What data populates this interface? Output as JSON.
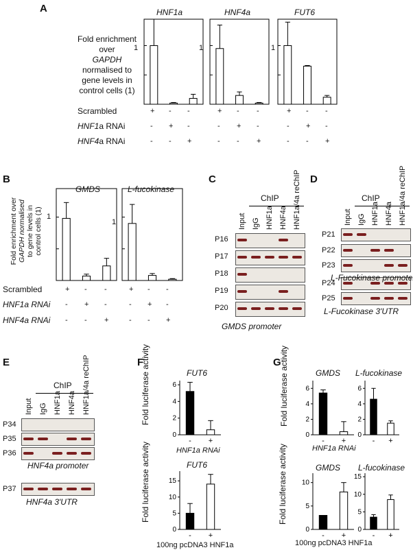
{
  "panels": {
    "A": "A",
    "B": "B",
    "C": "C",
    "D": "D",
    "E": "E",
    "F": "F",
    "G": "G"
  },
  "A": {
    "ylabel_lines": [
      "Fold enrichment",
      "over",
      "GAPDH",
      "normalised to",
      "gene levels in",
      "control cells (1)"
    ],
    "ytick": "1",
    "row_labels": [
      "Scrambled",
      "HNF1a RNAi",
      "HNF4a RNAi"
    ],
    "row_label_italic_part": [
      "",
      "HNF1",
      "HNF4"
    ],
    "row_label_rest": [
      "Scrambled",
      "a RNAi",
      "a RNAi"
    ],
    "signs": [
      [
        "+",
        "-",
        "-"
      ],
      [
        "-",
        "+",
        "-"
      ],
      [
        "-",
        "-",
        "+"
      ]
    ]
  },
  "B": {
    "ylabel_lines": [
      "Fold enrichment over",
      "GAPDH normalised",
      "to gene levels in",
      "control cells (1)"
    ],
    "ytick": "1",
    "row_labels": [
      "Scrambled",
      "HNF1a RNAi",
      "HNF4a RNAi"
    ],
    "signs": [
      [
        "+",
        "-",
        "-"
      ],
      [
        "-",
        "+",
        "-"
      ],
      [
        "-",
        "-",
        "+"
      ]
    ]
  },
  "chart_data": [
    {
      "type": "bar",
      "title": "HNF1a",
      "categories": [
        "Scrambled",
        "HNF1a RNAi",
        "HNF4a RNAi"
      ],
      "values": [
        1.0,
        0.02,
        0.1
      ],
      "errors": [
        0.45,
        0.01,
        0.07
      ],
      "ylim": [
        0,
        1.45
      ],
      "ytick": 1
    },
    {
      "type": "bar",
      "title": "HNF4a",
      "categories": [
        "Scrambled",
        "HNF1a RNAi",
        "HNF4a RNAi"
      ],
      "values": [
        0.95,
        0.15,
        0.02
      ],
      "errors": [
        0.4,
        0.06,
        0.01
      ],
      "ylim": [
        0,
        1.45
      ],
      "ytick": 1
    },
    {
      "type": "bar",
      "title": "FUT6",
      "categories": [
        "Scrambled",
        "HNF1a RNAi",
        "HNF4a RNAi"
      ],
      "values": [
        1.0,
        0.65,
        0.12
      ],
      "errors": [
        0.4,
        0.01,
        0.03
      ],
      "ylim": [
        0,
        1.45
      ],
      "ytick": 1
    },
    {
      "type": "bar",
      "title": "GMDS",
      "categories": [
        "Scrambled",
        "HNF1a RNAi",
        "HNF4a RNAi"
      ],
      "values": [
        0.98,
        0.07,
        0.23
      ],
      "errors": [
        0.25,
        0.03,
        0.12
      ],
      "ylim": [
        0,
        1.45
      ],
      "ytick": 1
    },
    {
      "type": "bar",
      "title": "L-fucokinase",
      "categories": [
        "Scrambled",
        "HNF1a RNAi",
        "HNF4a RNAi"
      ],
      "values": [
        0.9,
        0.08,
        0.02
      ],
      "errors": [
        0.3,
        0.03,
        0.01
      ],
      "ylim": [
        0,
        1.45
      ],
      "ytick": 1
    },
    {
      "type": "bar",
      "title": "FUT6",
      "ylabel": "Fold luciferase activity",
      "categories": [
        "-",
        "+"
      ],
      "xlabel": "HNF1a RNAi",
      "values": [
        5.2,
        0.6
      ],
      "errors": [
        1.1,
        1.1
      ],
      "ylim": [
        0,
        6.5
      ],
      "yticks": [
        0,
        2,
        4,
        6
      ],
      "fills": [
        "#000000",
        "#ffffff"
      ]
    },
    {
      "type": "bar",
      "title": "FUT6",
      "ylabel": "Fold luciferase activity",
      "categories": [
        "-",
        "+"
      ],
      "xlabel": "100ng pcDNA3 HNF1a",
      "values": [
        5,
        14
      ],
      "errors": [
        3,
        3
      ],
      "ylim": [
        0,
        18
      ],
      "yticks": [
        0,
        5,
        10,
        15
      ],
      "fills": [
        "#000000",
        "#ffffff"
      ]
    },
    {
      "type": "bar",
      "title": "GMDS",
      "ylabel": "Fold luciferase activity",
      "categories": [
        "-",
        "+"
      ],
      "xlabel": "HNF1a RNAi",
      "values": [
        5.4,
        0.4
      ],
      "errors": [
        0.4,
        1.3
      ],
      "ylim": [
        0,
        7
      ],
      "yticks": [
        0,
        2,
        4,
        6
      ],
      "fills": [
        "#000000",
        "#ffffff"
      ]
    },
    {
      "type": "bar",
      "title": "L-fucokinase",
      "categories": [
        "-",
        "+"
      ],
      "values": [
        4.6,
        1.5
      ],
      "errors": [
        1.4,
        0.3
      ],
      "ylim": [
        0,
        7
      ],
      "yticks": [
        0,
        2,
        4,
        6
      ],
      "fills": [
        "#000000",
        "#ffffff"
      ]
    },
    {
      "type": "bar",
      "title": "GMDS",
      "ylabel": "Fold luciferase activity",
      "categories": [
        "-",
        "+"
      ],
      "xlabel": "100ng pcDNA3 HNF1a",
      "values": [
        3,
        8
      ],
      "errors": [
        0,
        2
      ],
      "ylim": [
        0,
        12
      ],
      "yticks": [
        0,
        5,
        10
      ],
      "fills": [
        "#000000",
        "#ffffff"
      ]
    },
    {
      "type": "bar",
      "title": "L-fucokinase",
      "categories": [
        "-",
        "+"
      ],
      "values": [
        3.5,
        8.5
      ],
      "errors": [
        0.7,
        1.3
      ],
      "ylim": [
        0,
        16
      ],
      "yticks": [
        0,
        5,
        10,
        15
      ],
      "fills": [
        "#000000",
        "#ffffff"
      ]
    }
  ],
  "C": {
    "chip": "ChIP",
    "lanes": [
      "Input",
      "IgG",
      "HNF1a",
      "HNF4a",
      "HNF1a/4a reChIP"
    ],
    "rows": [
      "P16",
      "P17",
      "P18",
      "P19",
      "P20"
    ],
    "caption": "GMDS  promoter",
    "bands": [
      [
        1,
        0,
        0,
        1,
        0
      ],
      [
        1,
        1,
        1,
        1,
        1
      ],
      [
        1,
        0,
        0,
        0,
        0
      ],
      [
        1,
        0,
        0,
        1,
        0
      ],
      [
        1,
        1,
        1,
        1,
        1
      ]
    ]
  },
  "D": {
    "chip": "ChIP",
    "lanes": [
      "Input",
      "IgG",
      "HNF1a",
      "HNF4a",
      "HNF1a/4a reChIP"
    ],
    "rows": [
      "P21",
      "P22",
      "P23",
      "P24",
      "P25"
    ],
    "caption1": "L-Fucokinase promoter",
    "caption2": "L-Fucokinase 3'UTR",
    "bands": [
      [
        1,
        1,
        0,
        0,
        0
      ],
      [
        1,
        0,
        1,
        1,
        0
      ],
      [
        1,
        0,
        0,
        1,
        1
      ],
      [
        1,
        0,
        1,
        1,
        1
      ],
      [
        1,
        0,
        1,
        1,
        1
      ]
    ]
  },
  "E": {
    "chip": "ChIP",
    "lanes": [
      "Input",
      "IgG",
      "HNF1a",
      "HNF4a",
      "HNF1a/4a reChIP"
    ],
    "rows": [
      "P34",
      "P35",
      "P36",
      "P37"
    ],
    "caption1": "HNF4a promoter",
    "caption2": "HNF4a 3'UTR",
    "bands": [
      [
        0,
        0,
        0,
        0,
        0
      ],
      [
        1,
        1,
        0,
        1,
        1
      ],
      [
        1,
        0,
        1,
        1,
        1
      ],
      [
        1,
        1,
        1,
        1,
        1
      ]
    ]
  },
  "F": {
    "label_minus": "-",
    "label_plus": "+",
    "xlabel1": "HNF1a RNAi",
    "xlabel2": "100ng pcDNA3 HNF1a"
  },
  "G": {
    "label_minus": "-",
    "label_plus": "+",
    "xlabel1": "HNF1a RNAi",
    "xlabel2": "100ng pcDNA3 HNF1a"
  }
}
